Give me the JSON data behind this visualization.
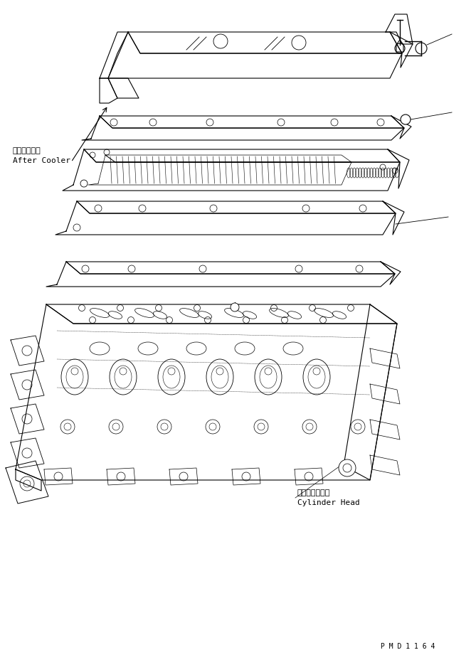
{
  "bg_color": "#ffffff",
  "line_color": "#000000",
  "line_width": 0.8,
  "label_after_cooler_jp": "アフタクーラ",
  "label_after_cooler_en": "After Cooler",
  "label_cylinder_head_jp": "シリンダヘッド",
  "label_cylinder_head_en": "Cylinder Head",
  "part_number": "P M D 1 1 6 4",
  "font_size_label": 8,
  "font_size_part": 7
}
